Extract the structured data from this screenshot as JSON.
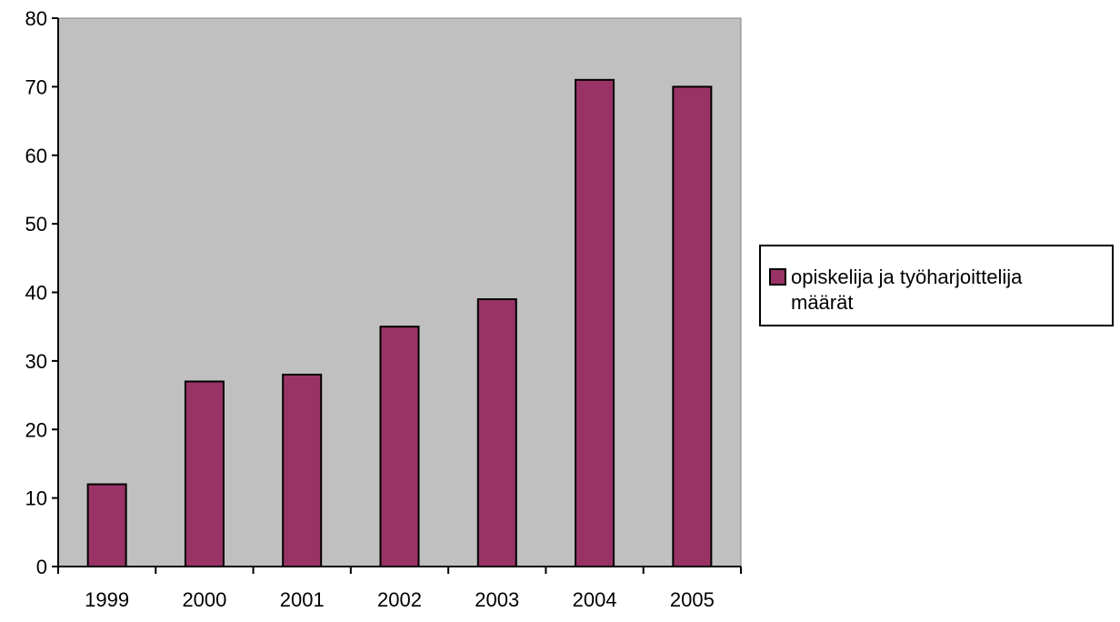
{
  "chart_data": {
    "type": "bar",
    "categories": [
      "1999",
      "2000",
      "2001",
      "2002",
      "2003",
      "2004",
      "2005"
    ],
    "series": [
      {
        "name": "opiskelija ja työharjoittelija määrät",
        "values": [
          12,
          27,
          28,
          35,
          39,
          71,
          70
        ],
        "color": "#993366"
      }
    ],
    "ylim": [
      0,
      80
    ],
    "yticks": [
      0,
      10,
      20,
      30,
      40,
      50,
      60,
      70,
      80
    ],
    "grid": false,
    "plot_background": "#c0c0c0",
    "legend_position": "right",
    "legend_lines": [
      "opiskelija ja työharjoittelija",
      "määrät"
    ]
  }
}
